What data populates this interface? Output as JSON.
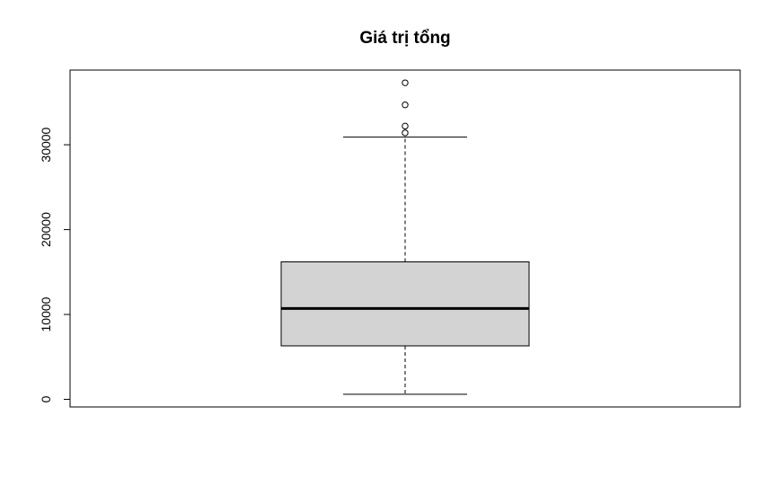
{
  "chart_data": {
    "type": "boxplot",
    "title": "Giá trị tổng",
    "xlabel": "",
    "ylabel": "",
    "ylim": [
      -900,
      38800
    ],
    "yticks": [
      0,
      10000,
      20000,
      30000
    ],
    "box": {
      "min": 600,
      "q1": 6300,
      "median": 10700,
      "q3": 16200,
      "max": 30900
    },
    "outliers": [
      31400,
      32200,
      34700,
      37300
    ],
    "box_fill": "#d3d3d3",
    "stroke": "#000000"
  }
}
